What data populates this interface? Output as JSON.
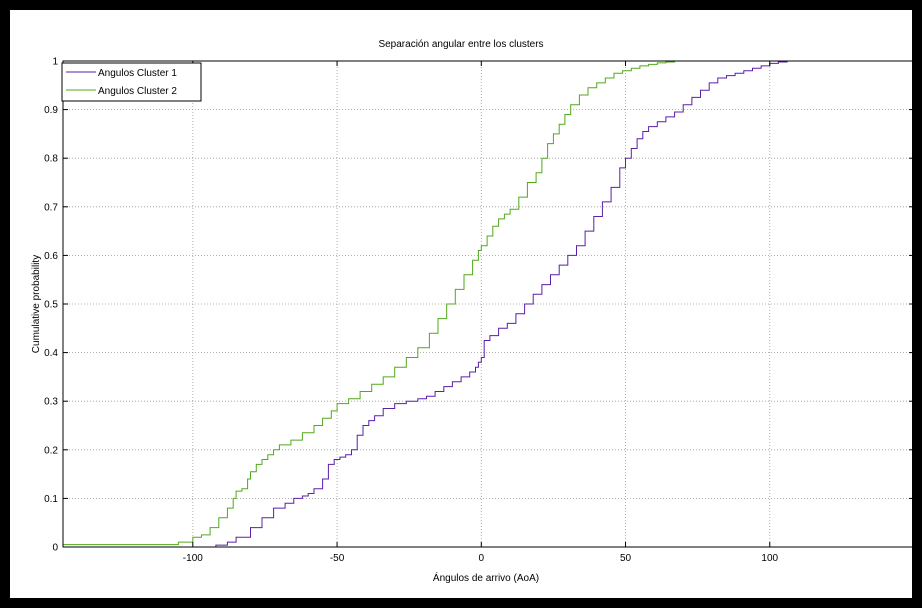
{
  "chart_data": {
    "type": "line",
    "title": "Separación angular entre los clusters",
    "xlabel": "Ángulos de arrivo (AoA)",
    "ylabel": "Cumulative probability",
    "xlim": [
      -145,
      150
    ],
    "ylim": [
      0,
      1
    ],
    "xticks": [
      -100,
      -50,
      0,
      50,
      100
    ],
    "yticks": [
      0,
      0.1,
      0.2,
      0.3,
      0.4,
      0.5,
      0.6,
      0.7,
      0.8,
      0.9,
      1
    ],
    "ytick_labels": [
      "0",
      "0.1",
      "0.2",
      "0.3",
      "0.4",
      "0.5",
      "0.6",
      "0.7",
      "0.8",
      "0.9",
      "1"
    ],
    "grid": true,
    "legend_position": "top-left",
    "series": [
      {
        "name": "Angulos Cluster 1",
        "color": "#5b1fa8",
        "x": [
          -145,
          -100,
          -92,
          -88,
          -85,
          -80,
          -76,
          -72,
          -68,
          -65,
          -62,
          -60,
          -58,
          -55,
          -53,
          -51,
          -49,
          -47,
          -45,
          -43,
          -41,
          -39,
          -37,
          -34,
          -30,
          -26,
          -22,
          -19,
          -16,
          -13,
          -10,
          -7,
          -4,
          -2,
          -1,
          0,
          1,
          3,
          6,
          9,
          12,
          15,
          18,
          21,
          24,
          27,
          30,
          33,
          36,
          39,
          42,
          45,
          48,
          50,
          52,
          54,
          56,
          58,
          61,
          64,
          67,
          70,
          73,
          76,
          79,
          82,
          85,
          88,
          91,
          94,
          97,
          100,
          103,
          106,
          150
        ],
        "y": [
          0,
          0,
          0.004,
          0.01,
          0.02,
          0.04,
          0.06,
          0.08,
          0.09,
          0.1,
          0.105,
          0.11,
          0.12,
          0.14,
          0.17,
          0.18,
          0.185,
          0.19,
          0.2,
          0.23,
          0.25,
          0.26,
          0.27,
          0.285,
          0.295,
          0.3,
          0.305,
          0.31,
          0.32,
          0.33,
          0.34,
          0.35,
          0.36,
          0.37,
          0.38,
          0.39,
          0.425,
          0.435,
          0.45,
          0.46,
          0.48,
          0.5,
          0.52,
          0.54,
          0.56,
          0.58,
          0.6,
          0.62,
          0.65,
          0.68,
          0.71,
          0.74,
          0.78,
          0.8,
          0.82,
          0.84,
          0.855,
          0.865,
          0.875,
          0.885,
          0.895,
          0.91,
          0.925,
          0.94,
          0.955,
          0.965,
          0.97,
          0.975,
          0.98,
          0.985,
          0.99,
          0.995,
          0.998,
          1,
          1
        ]
      },
      {
        "name": "Angulos Cluster 2",
        "color": "#52a81c",
        "x": [
          -145,
          -110,
          -105,
          -100,
          -97,
          -94,
          -91,
          -88,
          -86,
          -85,
          -83,
          -81,
          -80,
          -78,
          -76,
          -74,
          -72,
          -70,
          -66,
          -62,
          -58,
          -55,
          -52,
          -50,
          -46,
          -42,
          -38,
          -34,
          -30,
          -26,
          -22,
          -18,
          -15,
          -12,
          -9,
          -6,
          -3,
          -1,
          0,
          2,
          4,
          6,
          8,
          10,
          13,
          16,
          19,
          21,
          23,
          25,
          27,
          29,
          31,
          34,
          37,
          40,
          43,
          46,
          49,
          52,
          55,
          58,
          61,
          64,
          67,
          70,
          150
        ],
        "y": [
          0.005,
          0.005,
          0.01,
          0.02,
          0.025,
          0.04,
          0.06,
          0.08,
          0.1,
          0.115,
          0.12,
          0.14,
          0.155,
          0.17,
          0.18,
          0.19,
          0.2,
          0.21,
          0.22,
          0.235,
          0.25,
          0.265,
          0.28,
          0.295,
          0.305,
          0.32,
          0.335,
          0.35,
          0.37,
          0.39,
          0.41,
          0.44,
          0.47,
          0.5,
          0.53,
          0.56,
          0.59,
          0.61,
          0.62,
          0.64,
          0.66,
          0.675,
          0.685,
          0.695,
          0.72,
          0.75,
          0.77,
          0.8,
          0.83,
          0.85,
          0.87,
          0.89,
          0.91,
          0.93,
          0.945,
          0.955,
          0.965,
          0.975,
          0.98,
          0.985,
          0.99,
          0.993,
          0.996,
          0.998,
          1,
          1,
          1
        ]
      }
    ]
  }
}
